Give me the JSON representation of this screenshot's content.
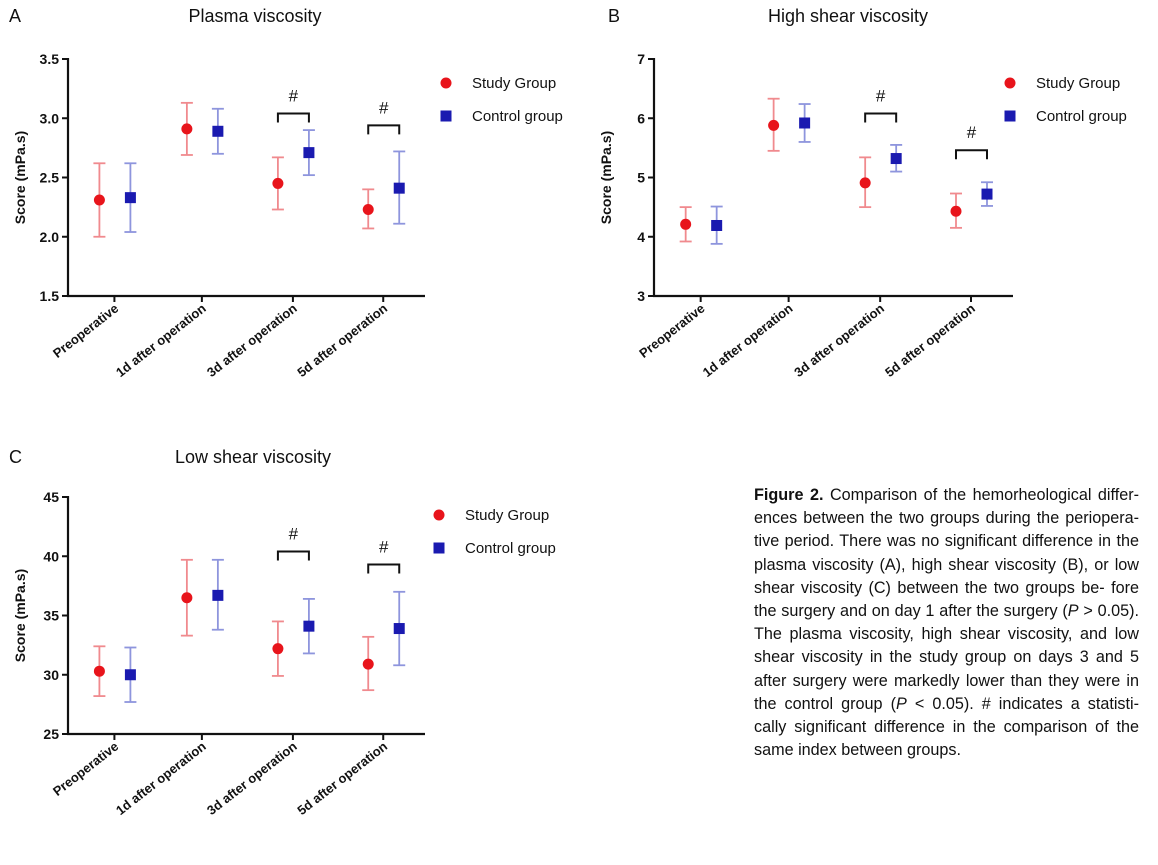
{
  "chart_data": [
    {
      "type": "scatter",
      "letter": "A",
      "title": "Plasma viscosity",
      "xlabel": "",
      "ylabel": "Score (mPa.s)",
      "ylim": [
        1.5,
        3.5
      ],
      "yticks": [
        1.5,
        2.0,
        2.5,
        3.0,
        3.5
      ],
      "ytick_labels": [
        "1.5",
        "2.0",
        "2.5",
        "3.0",
        "3.5"
      ],
      "categories": [
        "Preoperative",
        "1d after operation",
        "3d after operation",
        "5d after operation"
      ],
      "series": [
        {
          "name": "Study Group",
          "marker": "circle",
          "color": "#e8141b",
          "mean": [
            2.31,
            2.91,
            2.45,
            2.23
          ],
          "err_low": [
            2.0,
            2.69,
            2.23,
            2.07
          ],
          "err_high": [
            2.62,
            3.13,
            2.67,
            2.4
          ]
        },
        {
          "name": "Control group",
          "marker": "square",
          "color": "#1a1ab0",
          "mean": [
            2.33,
            2.89,
            2.71,
            2.41
          ],
          "err_low": [
            2.04,
            2.7,
            2.52,
            2.11
          ],
          "err_high": [
            2.62,
            3.08,
            2.9,
            2.72
          ]
        }
      ],
      "significance": [
        {
          "category": 2,
          "level": 3.04,
          "label": "#"
        },
        {
          "category": 3,
          "level": 2.94,
          "label": "#"
        }
      ],
      "legend": "right",
      "grid": false
    },
    {
      "type": "scatter",
      "letter": "B",
      "title": "High shear viscosity",
      "xlabel": "",
      "ylabel": "Score (mPa.s)",
      "ylim": [
        3,
        7
      ],
      "yticks": [
        3,
        4,
        5,
        6,
        7
      ],
      "ytick_labels": [
        "3",
        "4",
        "5",
        "6",
        "7"
      ],
      "categories": [
        "Preoperative",
        "1d after operation",
        "3d after operation",
        "5d after operation"
      ],
      "series": [
        {
          "name": "Study Group",
          "marker": "circle",
          "color": "#e8141b",
          "mean": [
            4.21,
            5.88,
            4.91,
            4.43
          ],
          "err_low": [
            3.92,
            5.45,
            4.5,
            4.15
          ],
          "err_high": [
            4.5,
            6.33,
            5.34,
            4.73
          ]
        },
        {
          "name": "Control group",
          "marker": "square",
          "color": "#1a1ab0",
          "mean": [
            4.19,
            5.92,
            5.32,
            4.72
          ],
          "err_low": [
            3.88,
            5.6,
            5.1,
            4.52
          ],
          "err_high": [
            4.51,
            6.24,
            5.55,
            4.92
          ]
        }
      ],
      "significance": [
        {
          "category": 2,
          "level": 6.08,
          "label": "#"
        },
        {
          "category": 3,
          "level": 5.46,
          "label": "#"
        }
      ],
      "legend": "right",
      "grid": false
    },
    {
      "type": "scatter",
      "letter": "C",
      "title": "Low shear viscosity",
      "xlabel": "",
      "ylabel": "Score (mPa.s)",
      "ylim": [
        25,
        45
      ],
      "yticks": [
        25,
        30,
        35,
        40,
        45
      ],
      "ytick_labels": [
        "25",
        "30",
        "35",
        "40",
        "45"
      ],
      "categories": [
        "Preoperative",
        "1d after operation",
        "3d after operation",
        "5d after operation"
      ],
      "series": [
        {
          "name": "Study Group",
          "marker": "circle",
          "color": "#e8141b",
          "mean": [
            30.3,
            36.5,
            32.2,
            30.9
          ],
          "err_low": [
            28.2,
            33.3,
            29.9,
            28.7
          ],
          "err_high": [
            32.4,
            39.7,
            34.5,
            33.2
          ]
        },
        {
          "name": "Control group",
          "marker": "square",
          "color": "#1a1ab0",
          "mean": [
            30.0,
            36.7,
            34.1,
            33.9
          ],
          "err_low": [
            27.7,
            33.8,
            31.8,
            30.8
          ],
          "err_high": [
            32.3,
            39.7,
            36.4,
            37.0
          ]
        }
      ],
      "significance": [
        {
          "category": 2,
          "level": 40.4,
          "label": "#"
        },
        {
          "category": 3,
          "level": 39.3,
          "label": "#"
        }
      ],
      "legend": "right",
      "grid": false
    }
  ],
  "caption": {
    "label": "Figure 2.",
    "line1": "Comparison of the hemorheological differ-",
    "line2": "ences between the two groups during the periopera-",
    "line3": "tive period. There was no significant difference in",
    "line4": "the plasma viscosity (A), high shear viscosity (B), or",
    "line5": "low shear viscosity (C) between the two groups be-",
    "line6a": "fore the surgery and on day 1 after the surgery (",
    "p1": "P",
    "line6b": " >",
    "line7": "0.05). The plasma viscosity, high shear viscosity, and",
    "line8": "low shear viscosity in the study group on days 3 and",
    "line9": "5 after surgery were markedly lower than they were",
    "line10a": "in the control group (",
    "p2": "P",
    "line10b": " < 0.05). # indicates a statisti-",
    "line11": "cally significant difference in the comparison of the",
    "line12": "same index between groups."
  },
  "colors": {
    "study": "#e8141b",
    "study_bar": "#f08a8e",
    "control": "#1a1ab0",
    "control_bar": "#8e95dd",
    "axis": "#111111"
  }
}
